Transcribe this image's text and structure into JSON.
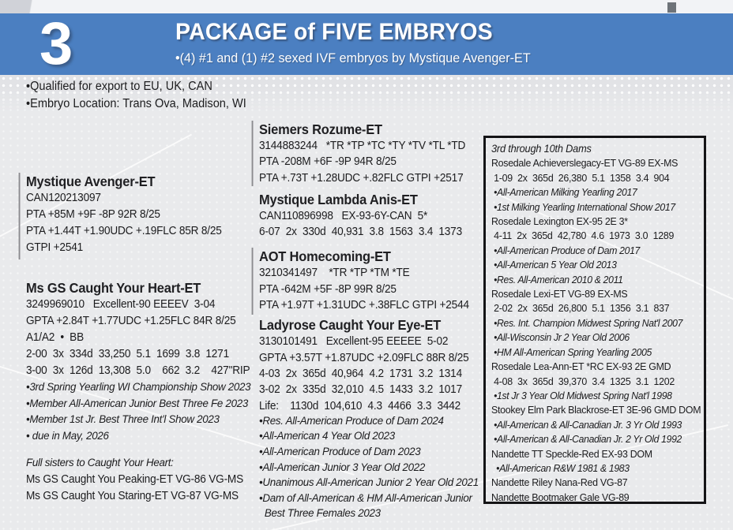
{
  "colors": {
    "header_blue": "#4b7fc1",
    "text": "#1c1c1e"
  },
  "header": {
    "lot": "3",
    "title": "PACKAGE of FIVE EMBRYOS",
    "subtitle": "•(4) #1 and (1) #2 sexed IVF embryos by Mystique Avenger-ET"
  },
  "notes": {
    "export": "•Qualified for export to EU, UK, CAN",
    "location": "•Embryo Location:  Trans Ova, Madison, WI"
  },
  "left": {
    "sire": {
      "name": "Mystique Avenger-ET",
      "lines": [
        "CAN120213097",
        "PTA +85M +9F -8P 92R 8/25",
        "PTA +1.44T +1.90UDC +.19FLC 85R 8/25",
        "GTPI +2541"
      ]
    },
    "dam": {
      "name": "Ms GS Caught Your Heart-ET",
      "lines": [
        "3249969010   Excellent-90 EEEEV  3-04",
        "GPTA +2.84T +1.77UDC +1.25FLC 84R 8/25",
        "A1/A2  •  BB",
        "2-00  3x  334d  33,250  5.1  1699  3.8  1271",
        "3-00  3x  126d  13,308  5.0    662  3.2    427\"RIP"
      ],
      "bullets": [
        "•3rd Spring Yearling WI Championship Show 2023",
        "•Member All-American Junior Best Three Fe 2023",
        "•Member 1st Jr. Best Three Int'l Show 2023",
        "• due in May, 2026"
      ]
    },
    "sisters": {
      "heading": "Full sisters to Caught Your Heart:",
      "lines": [
        "Ms GS Caught You Peaking-ET VG-86 VG-MS",
        "Ms GS Caught You Staring-ET VG-87 VG-MS"
      ]
    }
  },
  "mid": {
    "rozume": {
      "name": "Siemers Rozume-ET",
      "lines": [
        "3144883244   *TR *TP *TC *TY *TV *TL *TD",
        "PTA -208M +6F -9P 94R 8/25",
        "PTA +.73T +1.28UDC +.82FLC GTPI +2517"
      ]
    },
    "anis": {
      "name": "Mystique Lambda Anis-ET",
      "lines": [
        "CAN110896998   EX-93-6Y-CAN  5*",
        "6-07  2x  330d  40,931  3.8  1563  3.4  1373"
      ]
    },
    "homecoming": {
      "name": "AOT Homecoming-ET",
      "lines": [
        "3210341497    *TR *TP *TM *TE",
        "PTA -642M +5F -8P 99R 8/25",
        "PTA +1.97T +1.31UDC +.38FLC GTPI +2544"
      ]
    },
    "ladyrose": {
      "name": "Ladyrose Caught Your Eye-ET",
      "lines": [
        "3130101491   Excellent-95 EEEEE  5-02",
        "GPTA +3.57T +1.87UDC +2.09FLC 88R 8/25",
        "4-03  2x  365d  40,964  4.2  1731  3.2  1314",
        "3-02  2x  335d  32,010  4.5  1433  3.2  1017",
        "Life:    1130d  104,610  4.3  4466  3.3  3442"
      ],
      "bullets": [
        "•Res. All-American Produce of Dam 2024",
        "•All-American 4 Year Old 2023",
        "•All-American Produce of Dam 2023",
        "•All-American Junior 3 Year Old 2022",
        "•Unanimous All-American Junior 2 Year Old 2021",
        "•Dam of All-American & HM All-American Junior",
        "  Best Three Females 2023"
      ]
    }
  },
  "box": {
    "heading": "3rd through 10th Dams",
    "rows": [
      "Rosedale Achieverslegacy-ET VG-89 EX-MS",
      " 1-09  2x  365d  26,380  5.1  1358  3.4  904",
      " •All-American Milking Yearling 2017",
      " •1st Milking Yearling International Show 2017",
      "Rosedale Lexington EX-95 2E 3*",
      " 4-11  2x  365d  42,780  4.6  1973  3.0  1289",
      " •All-American Produce of Dam 2017",
      " •All-American 5 Year Old 2013",
      " •Res. All-American 2010 & 2011",
      "Rosedale Lexi-ET VG-89 EX-MS",
      " 2-02  2x  365d  26,800  5.1  1356  3.1  837",
      " •Res. Int. Champion Midwest Spring Nat'l 2007",
      " •All-Wisconsin Jr 2 Year Old 2006",
      " •HM All-American Spring Yearling 2005",
      "Rosedale Lea-Ann-ET *RC EX-93 2E GMD",
      " 4-08  3x  365d  39,370  3.4  1325  3.1  1202",
      " •1st Jr 3 Year Old Midwest Spring Nat'l 1998",
      "Stookey Elm Park Blackrose-ET 3E-96 GMD DOM",
      " •All-American & All-Canadian Jr. 3 Yr Old 1993",
      " •All-American & All-Canadian Jr. 2 Yr Old 1992",
      "Nandette TT Speckle-Red EX-93 DOM",
      "  •All-American R&W 1981 & 1983",
      "Nandette Riley Nana-Red VG-87",
      "Nandette Bootmaker Gale VG-89"
    ]
  }
}
